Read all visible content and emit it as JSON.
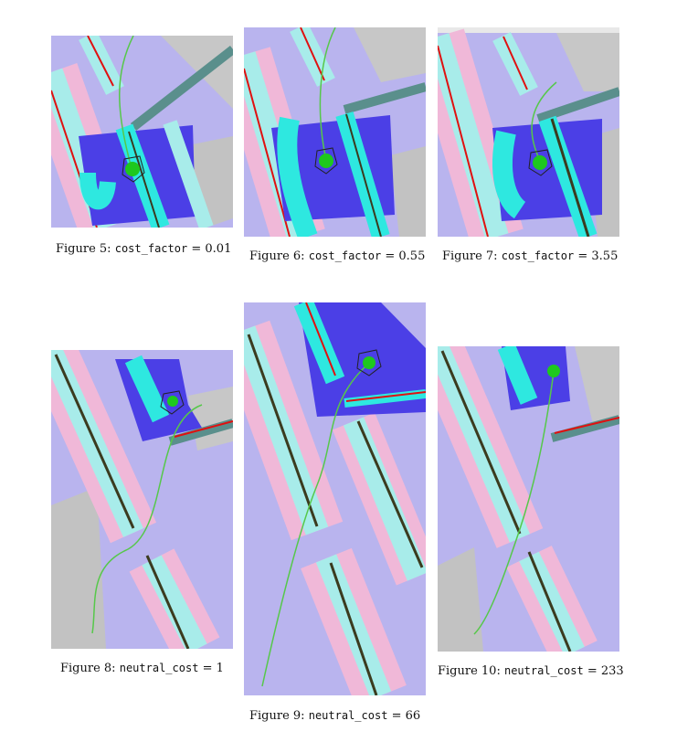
{
  "figures": [
    {
      "caption_prefix": "Figure 5:",
      "param": "cost_factor",
      "op": "=",
      "value": "0.01"
    },
    {
      "caption_prefix": "Figure 6:",
      "param": "cost_factor",
      "op": "=",
      "value": "0.55"
    },
    {
      "caption_prefix": "Figure 7:",
      "param": "cost_factor",
      "op": "=",
      "value": "3.55"
    },
    {
      "caption_prefix": "Figure 8:",
      "param": "neutral_cost",
      "op": "=",
      "value": "1"
    },
    {
      "caption_prefix": "Figure 9:",
      "param": "neutral_cost",
      "op": "=",
      "value": "66"
    },
    {
      "caption_prefix": "Figure 10:",
      "param": "neutral_cost",
      "op": "=",
      "value": "233"
    }
  ],
  "colors": {
    "background_costmap": "#b7b3ee",
    "inflation_cyan": "#9fe8e2",
    "lethal_cyan": "#2ee8e0",
    "obstacle_red": "#e01010",
    "wall_dark": "#3b3b1f",
    "potential_blue": "#4a3ee8",
    "robot_green": "#1ec81e",
    "path_green": "#56c84a",
    "unknown_gray": "#bdbdbd",
    "wall_teal": "#5a8f8c"
  }
}
